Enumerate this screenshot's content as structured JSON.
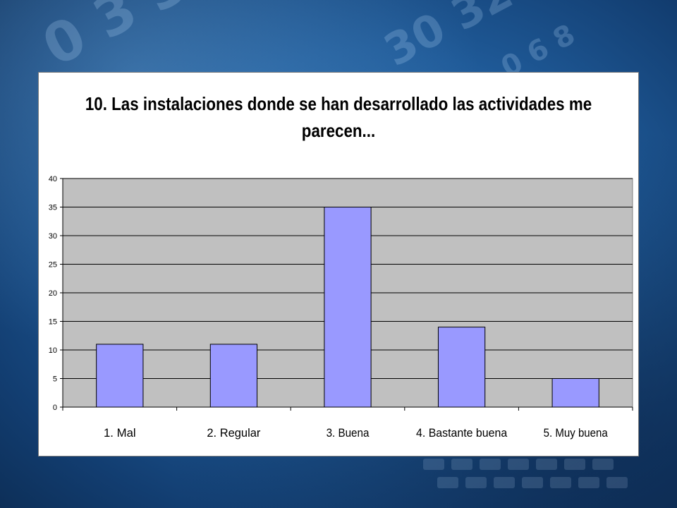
{
  "chart_data": {
    "type": "bar",
    "title": "10. Las instalaciones donde se han desarrollado las actividades me parecen...",
    "categories": [
      "1. Mal",
      "2. Regular",
      "3. Buena",
      "4. Bastante buena",
      "5. Muy buena"
    ],
    "values": [
      11,
      11,
      35,
      14,
      5
    ],
    "ylim": [
      0,
      40
    ],
    "yticks": [
      "0",
      "5",
      "10",
      "15",
      "20",
      "25",
      "30",
      "35",
      "40"
    ],
    "grid": true,
    "xlabel": "",
    "ylabel": "",
    "colors": {
      "bar_fill": "#9999ff",
      "bar_stroke": "#000000",
      "plot_background": "#c0c0c0",
      "gridline": "#000000"
    }
  }
}
